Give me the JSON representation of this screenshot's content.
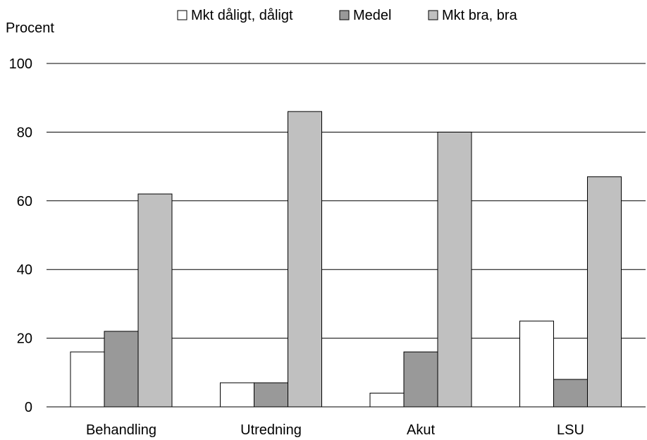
{
  "chart_data": {
    "type": "bar",
    "title": "",
    "ylabel": "Procent",
    "xlabel": "",
    "categories": [
      "Behandling",
      "Utredning",
      "Akut",
      "LSU"
    ],
    "series": [
      {
        "name": "Mkt dåligt, dåligt",
        "values": [
          16,
          7,
          4,
          25
        ],
        "color": "#ffffff"
      },
      {
        "name": "Medel",
        "values": [
          22,
          7,
          16,
          8
        ],
        "color": "#999999"
      },
      {
        "name": "Mkt bra, bra",
        "values": [
          62,
          86,
          80,
          67
        ],
        "color": "#c0c0c0"
      }
    ],
    "ylim": [
      0,
      100
    ],
    "yticks": [
      0,
      20,
      40,
      60,
      80,
      100
    ],
    "grid": true,
    "legend_position": "top"
  }
}
